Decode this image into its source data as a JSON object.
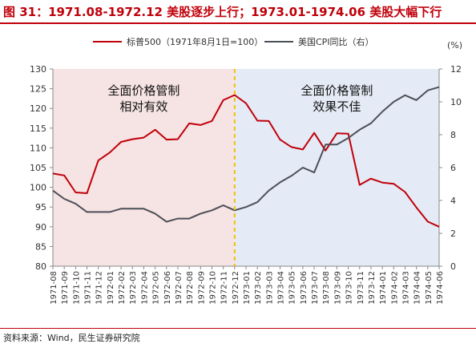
{
  "title": "图 31：1971.08-1972.12 美股逐步上行；1973.01-1974.06 美股大幅下行",
  "source": "资料来源：Wind，民生证券研究院",
  "chart_data": {
    "type": "line",
    "categories": [
      "1971-08",
      "1971-09",
      "1971-10",
      "1971-11",
      "1971-12",
      "1972-01",
      "1972-02",
      "1972-03",
      "1972-04",
      "1972-05",
      "1972-06",
      "1972-07",
      "1972-08",
      "1972-09",
      "1972-10",
      "1972-11",
      "1972-12",
      "1973-01",
      "1973-02",
      "1973-03",
      "1973-04",
      "1973-05",
      "1973-06",
      "1973-07",
      "1973-08",
      "1973-09",
      "1973-10",
      "1973-11",
      "1973-12",
      "1974-01",
      "1974-02",
      "1974-03",
      "1974-04",
      "1974-05",
      "1974-06"
    ],
    "series": [
      {
        "name": "标普500（1971年8月1日=100）",
        "axis": "left",
        "color": "#c0000a",
        "values": [
          103.5,
          103,
          98.7,
          98.5,
          106.8,
          108.8,
          111.5,
          112.2,
          112.6,
          114.6,
          112.1,
          112.2,
          116.2,
          115.8,
          116.8,
          122.1,
          123.4,
          121.3,
          116.9,
          116.8,
          112.1,
          110.2,
          109.6,
          113.8,
          109.3,
          113.7,
          113.6,
          100.6,
          102.2,
          101.2,
          100.9,
          98.8,
          94.9,
          91.3,
          90
        ]
      },
      {
        "name": "美国CPI同比（右）",
        "axis": "right",
        "color": "#4c4f57",
        "values": [
          4.6,
          4.1,
          3.8,
          3.3,
          3.3,
          3.3,
          3.5,
          3.5,
          3.5,
          3.2,
          2.7,
          2.9,
          2.9,
          3.2,
          3.4,
          3.7,
          3.4,
          3.6,
          3.9,
          4.6,
          5.1,
          5.5,
          6,
          5.7,
          7.4,
          7.4,
          7.8,
          8.3,
          8.7,
          9.4,
          10,
          10.4,
          10.1,
          10.7,
          10.9
        ]
      }
    ],
    "y_left": {
      "min": 80,
      "max": 130,
      "step": 5
    },
    "y_right": {
      "min": 0,
      "max": 12,
      "step": 2
    },
    "right_axis_unit": "(%)",
    "shaded_regions": [
      {
        "from": "1971-08",
        "to": "1972-12",
        "color": "#f6e3e3",
        "label_lines": [
          "全面价格管制",
          "相对有效"
        ]
      },
      {
        "from": "1972-12",
        "to": "1974-06",
        "color": "#e5ebf6",
        "label_lines": [
          "全面价格管制",
          "效果不佳"
        ]
      }
    ],
    "divider_at": "1972-12",
    "legend_position": "top"
  }
}
